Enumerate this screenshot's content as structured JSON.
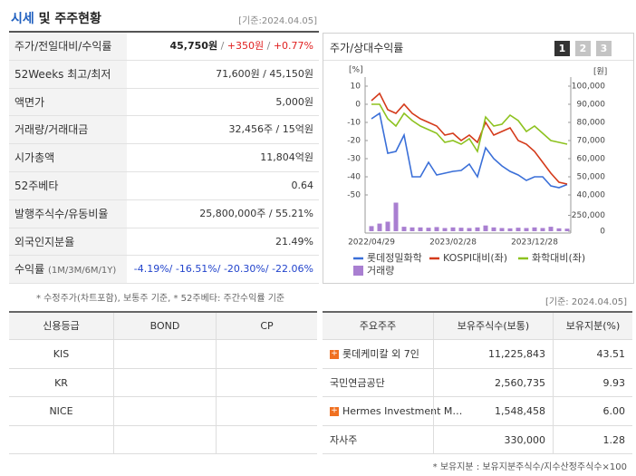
{
  "header": {
    "title_accent": "시세",
    "title_rest": " 및 주주현황",
    "date": "[기준:2024.04.05]"
  },
  "price_table": {
    "separator": " / ",
    "rows": [
      {
        "label": "주가/전일대비/수익률",
        "value_parts": [
          "45,750원",
          "+350원",
          "+0.77%"
        ],
        "part_colors": [
          "#222222",
          "#e02020",
          "#e02020"
        ]
      },
      {
        "label": "52Weeks 최고/최저",
        "value": "71,600원 / 45,150원"
      },
      {
        "label": "액면가",
        "value": "5,000원"
      },
      {
        "label": "거래량/거래대금",
        "value": "32,456주 / 15억원"
      },
      {
        "label": "시가총액",
        "value": "11,804억원"
      },
      {
        "label": "52주베타",
        "value": "0.64"
      },
      {
        "label": "발행주식수/유동비율",
        "value": "25,800,000주 / 55.21%"
      },
      {
        "label": "외국인지분율",
        "value": "21.49%"
      },
      {
        "label": "수익률",
        "label_sub": "(1M/3M/6M/1Y)",
        "value": "-4.19%/ -16.51%/ -20.30%/ -22.06%",
        "value_color": "#2244cc"
      }
    ],
    "footnote": "* 수정주가(차트포함), 보통주 기준, * 52주베타: 주간수익률 기준"
  },
  "chart_box": {
    "title": "주가/상대수익률",
    "buttons": [
      "1",
      "2",
      "3"
    ],
    "date": "[기준: 2024.04.05]"
  },
  "chart_data": {
    "type": "line",
    "y_label": "[%]",
    "y2_label": "[원]",
    "categories": [
      "2022/04/29",
      null,
      null,
      null,
      null,
      null,
      null,
      null,
      null,
      null,
      "2023/02/28",
      null,
      null,
      null,
      null,
      null,
      null,
      null,
      null,
      null,
      "2023/12/28",
      null,
      null,
      null,
      null
    ],
    "ylim": [
      -50,
      10
    ],
    "yticks": [
      10,
      0,
      -10,
      -20,
      -30,
      -40,
      -50
    ],
    "y2lim": [
      40000,
      100000
    ],
    "y2ticks": [
      {
        "value": 100000,
        "label": "100,000"
      },
      {
        "value": 90000,
        "label": "90,000"
      },
      {
        "value": 80000,
        "label": "80,000"
      },
      {
        "value": 70000,
        "label": "70,000"
      },
      {
        "value": 60000,
        "label": "60,000"
      },
      {
        "value": 50000,
        "label": "50,000"
      },
      {
        "value": 40000,
        "label": "40,000"
      }
    ],
    "series": [
      {
        "name": "롯데정밀화학",
        "color": "#3a6fd8",
        "axis": "y2",
        "values": [
          82000,
          85000,
          63000,
          64000,
          73000,
          50000,
          50000,
          58000,
          51000,
          52000,
          53000,
          53500,
          57000,
          50000,
          66000,
          60000,
          56000,
          53000,
          51000,
          48000,
          50000,
          50000,
          45000,
          44000,
          45750
        ]
      },
      {
        "name": "KOSPI대비(좌)",
        "color": "#d43a1a",
        "values": [
          2,
          6,
          -3,
          -5,
          0,
          -5,
          -8,
          -10,
          -12,
          -17,
          -16,
          -20,
          -17,
          -21,
          -10,
          -17,
          -15,
          -13,
          -20,
          -22,
          -26,
          -32,
          -38,
          -43,
          -44
        ]
      },
      {
        "name": "화학대비(좌)",
        "color": "#8dc21f",
        "values": [
          0,
          0,
          -8,
          -12,
          -5,
          -9,
          -12,
          -14,
          -16,
          -21,
          -20,
          -22,
          -19,
          -26,
          -7,
          -12,
          -11,
          -6,
          -9,
          -15,
          -12,
          -16,
          -20,
          -21,
          -22
        ]
      }
    ],
    "volume": {
      "name": "거래량",
      "color": "#a97fd1",
      "values": [
        80000,
        120000,
        150000,
        450000,
        70000,
        60000,
        60000,
        55000,
        65000,
        50000,
        60000,
        55000,
        50000,
        60000,
        90000,
        60000,
        50000,
        45000,
        55000,
        50000,
        60000,
        50000,
        70000,
        45000,
        40000
      ]
    },
    "vlim": [
      0,
      500000
    ],
    "vticks": [
      {
        "value": 250000,
        "label": "250,000"
      },
      0
    ]
  },
  "credit_table": {
    "headers": [
      "신용등급",
      "BOND",
      "CP"
    ],
    "rows": [
      [
        "KIS"
      ],
      [
        "KR"
      ],
      [
        "NICE"
      ]
    ]
  },
  "holder_table": {
    "headers": [
      "주요주주",
      "보유주식수(보통)",
      "보유지분(%)"
    ],
    "expandable": [
      true,
      false,
      true,
      false
    ],
    "rows": [
      [
        "롯데케미칼 외 7인",
        "11,225,843",
        "43.51"
      ],
      [
        "국민연금공단",
        "2,560,735",
        "9.93"
      ],
      [
        "Hermes Investment M…",
        "1,548,458",
        "6.00"
      ],
      [
        "자사주",
        "330,000",
        "1.28"
      ]
    ],
    "footnote": "* 보유지분 : 보유지분주식수/지수산정주식수×100"
  }
}
